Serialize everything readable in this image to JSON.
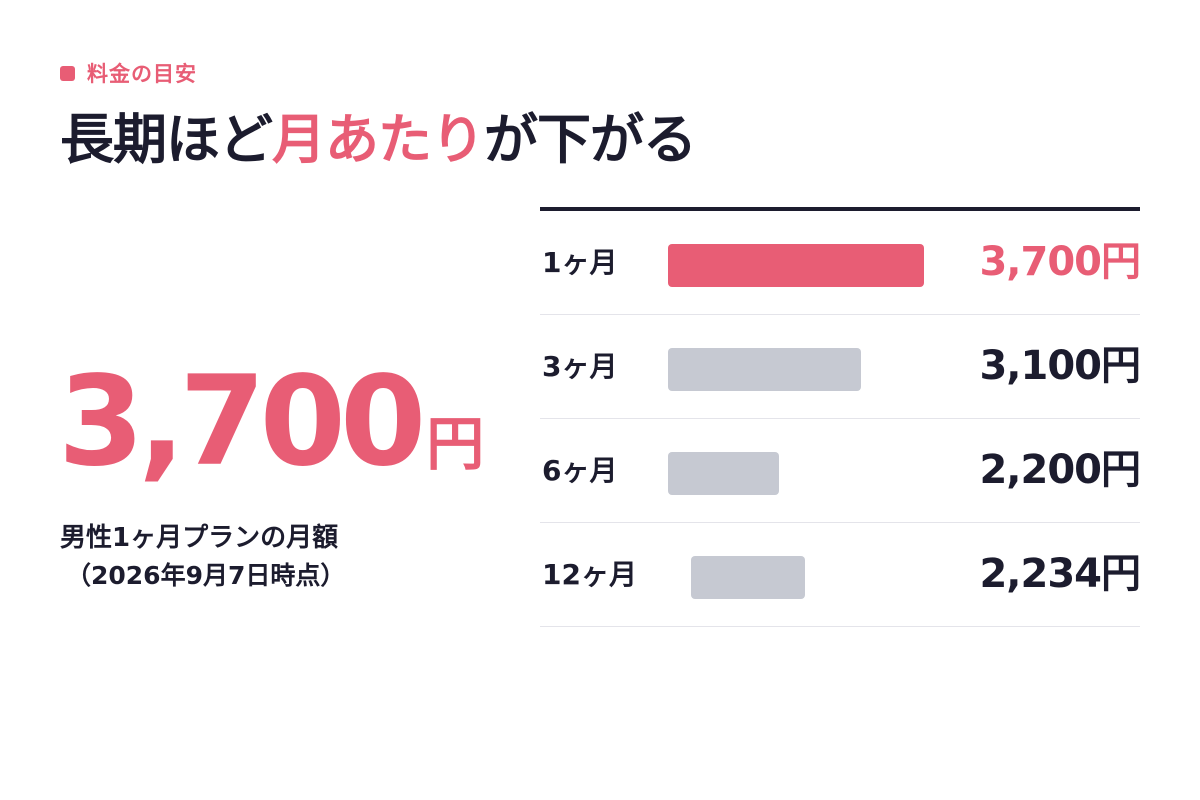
{
  "eyebrow": {
    "label": "料金の目安",
    "color": "#e85d75"
  },
  "headline": {
    "before": "長期ほど",
    "accent": "月あたり",
    "after": "が下がる"
  },
  "hero": {
    "value": "3,700",
    "unit": "円",
    "caption_line1": "男性1ヶ月プランの月額",
    "caption_line2": "（2026年9月7日時点）"
  },
  "chart_data": {
    "type": "bar",
    "orientation": "horizontal",
    "categories": [
      "1ヶ月",
      "3ヶ月",
      "6ヶ月",
      "12ヶ月"
    ],
    "values": [
      3700,
      3100,
      2200,
      2234
    ],
    "value_labels": [
      "3,700円",
      "3,100円",
      "2,200円",
      "2,234円"
    ],
    "highlight_index": 0,
    "colors": {
      "highlight": "#e85d75",
      "default": "#c6c9d2"
    },
    "grid": false,
    "legend": "none"
  }
}
